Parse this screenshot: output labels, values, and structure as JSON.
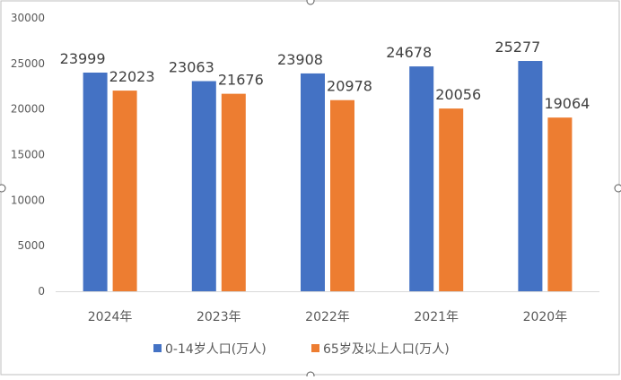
{
  "colors": {
    "series_blue": "#4472C4",
    "series_orange": "#ED7D31",
    "axis_text": "#595959",
    "label_text": "#404040",
    "gridline": "#D9D9D9",
    "frame": "#BFBFBF"
  },
  "chart_data": {
    "type": "bar",
    "categories": [
      "2024年",
      "2023年",
      "2022年",
      "2021年",
      "2020年"
    ],
    "series": [
      {
        "name": "0-14岁人口(万人)",
        "values": [
          23999,
          23063,
          23908,
          24678,
          25277
        ]
      },
      {
        "name": "65岁及以上人口(万人)",
        "values": [
          22023,
          21676,
          20978,
          20056,
          19064
        ]
      }
    ],
    "ylim": [
      0,
      30000
    ],
    "yticks": [
      "0",
      "5000",
      "10000",
      "15000",
      "20000",
      "25000",
      "30000"
    ],
    "grid": false,
    "legend": "bottom",
    "data_labels": true
  }
}
